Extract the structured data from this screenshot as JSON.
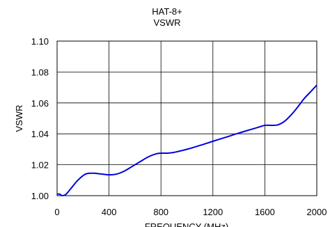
{
  "chart_data": {
    "type": "line",
    "title": "HAT-8+",
    "subtitle": "VSWR",
    "xlabel": "FREQUENCY (MHz)",
    "ylabel": "VSWR",
    "xlim": [
      0,
      2000
    ],
    "ylim": [
      1.0,
      1.1
    ],
    "x_ticks": [
      "0",
      "400",
      "800",
      "1200",
      "1600",
      "2000"
    ],
    "y_ticks": [
      "1.00",
      "1.02",
      "1.04",
      "1.06",
      "1.08",
      "1.10"
    ],
    "grid": true,
    "legend": "none",
    "line_color": "#0000e0",
    "series": [
      {
        "x": [
          0,
          20,
          40,
          70,
          110,
          160,
          220,
          280,
          340,
          400,
          460,
          520,
          580,
          640,
          700,
          760,
          800,
          850,
          900,
          1000,
          1100,
          1200,
          1300,
          1400,
          1500,
          1560,
          1600,
          1650,
          1700,
          1750,
          1800,
          1850,
          1900,
          1950,
          2000
        ],
        "values": [
          1.001,
          1.001,
          1.0,
          1.001,
          1.005,
          1.01,
          1.014,
          1.0145,
          1.014,
          1.0135,
          1.014,
          1.016,
          1.019,
          1.022,
          1.025,
          1.027,
          1.0275,
          1.0275,
          1.028,
          1.03,
          1.0325,
          1.0352,
          1.0378,
          1.0405,
          1.043,
          1.0445,
          1.0455,
          1.0455,
          1.0458,
          1.048,
          1.052,
          1.057,
          1.0625,
          1.067,
          1.0715
        ]
      }
    ]
  }
}
